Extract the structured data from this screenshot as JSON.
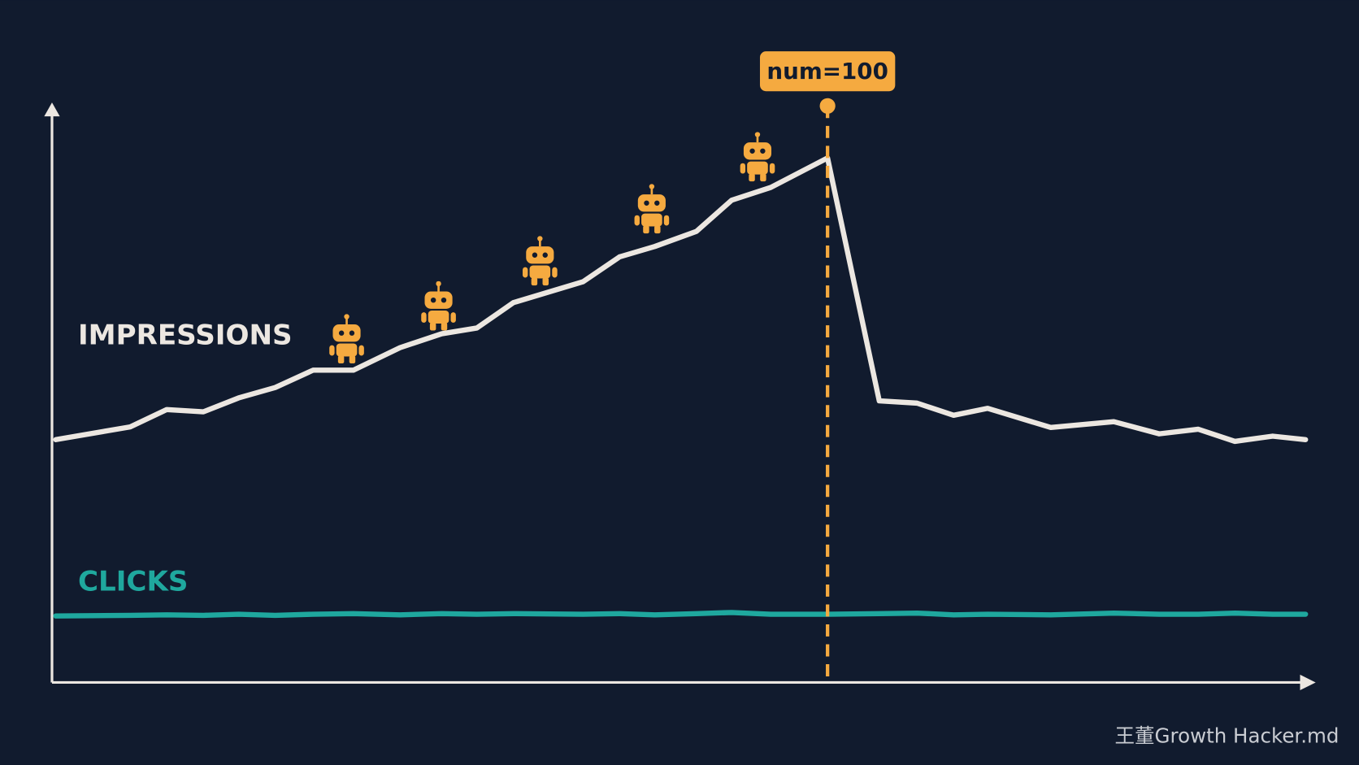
{
  "chart_data": {
    "type": "line",
    "x": [
      0.3,
      6.2,
      9.1,
      12.0,
      14.8,
      17.7,
      20.7,
      23.9,
      27.6,
      30.9,
      33.7,
      36.6,
      42.1,
      45.0,
      47.8,
      51.1,
      53.9,
      57.0,
      61.5,
      65.6,
      68.6,
      71.5,
      74.2,
      79.2,
      84.2,
      87.8,
      90.9,
      93.8,
      96.8,
      99.4
    ],
    "xlim": [
      0,
      100
    ],
    "ylim": [
      0,
      100
    ],
    "series": [
      {
        "name": "IMPRESSIONS",
        "color": "#ece7e1",
        "values": [
          42.0,
          44.2,
          47.2,
          46.8,
          49.2,
          51.0,
          54.0,
          54.0,
          57.9,
          60.3,
          61.3,
          65.7,
          69.3,
          73.6,
          75.4,
          78.0,
          83.4,
          85.6,
          90.7,
          48.7,
          48.3,
          46.2,
          47.4,
          44.1,
          45.1,
          43.0,
          43.8,
          41.7,
          42.6,
          42.0
        ]
      },
      {
        "name": "CLICKS",
        "color": "#1fa89e",
        "values": [
          11.5,
          11.6,
          11.7,
          11.6,
          11.8,
          11.6,
          11.8,
          11.9,
          11.7,
          11.9,
          11.8,
          11.9,
          11.8,
          11.9,
          11.7,
          11.9,
          12.1,
          11.8,
          11.8,
          11.9,
          12.0,
          11.7,
          11.8,
          11.7,
          12.0,
          11.8,
          11.8,
          12.0,
          11.8,
          11.8
        ]
      }
    ],
    "annotation": {
      "text": "num=100",
      "x": 61.5,
      "color": "#f5aa40"
    }
  },
  "watermark": "王董Growth Hacker.md"
}
